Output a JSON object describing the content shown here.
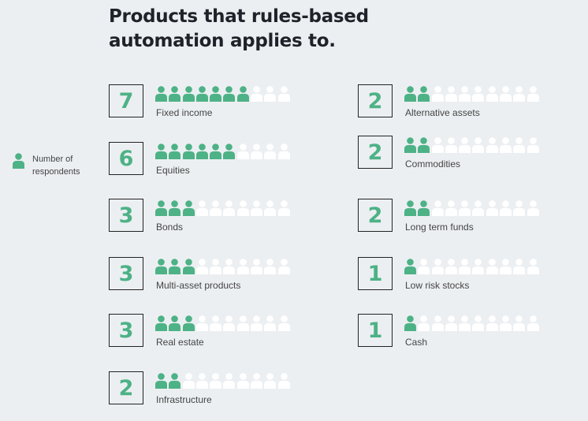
{
  "title_line1": "Products that rules-based",
  "title_line2": "automation applies to.",
  "legend": {
    "label": "Number of respondents"
  },
  "colors": {
    "filled": "#4db286",
    "empty": "#ffffff",
    "number": "#4db286",
    "background": "#eceff2"
  },
  "chart_data": {
    "type": "pictogram",
    "title": "Products that rules-based automation applies to.",
    "icons_per_row": 10,
    "legend": "Number of respondents",
    "left_column": [
      {
        "label": "Fixed income",
        "value": 7
      },
      {
        "label": "Equities",
        "value": 6
      },
      {
        "label": "Bonds",
        "value": 3
      },
      {
        "label": "Multi-asset products",
        "value": 3
      },
      {
        "label": "Real estate",
        "value": 3
      },
      {
        "label": "Infrastructure",
        "value": 2
      }
    ],
    "right_column": [
      {
        "label": "Alternative assets",
        "value": 2
      },
      {
        "label": "Commodities",
        "value": 2
      },
      {
        "label": "Long term funds",
        "value": 2
      },
      {
        "label": "Low risk stocks",
        "value": 1
      },
      {
        "label": "Cash",
        "value": 1
      }
    ]
  }
}
